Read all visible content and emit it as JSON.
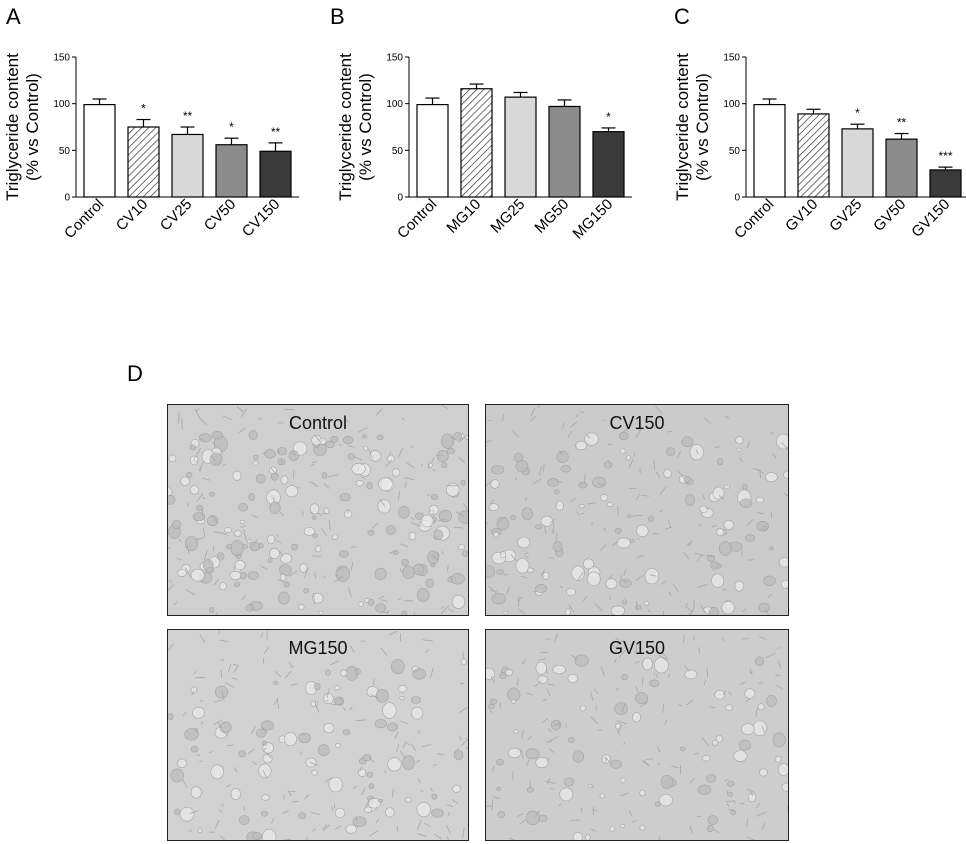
{
  "panels": {
    "a": "A",
    "b": "B",
    "c": "C",
    "d": "D"
  },
  "chart_data": [
    {
      "type": "bar",
      "panel": "A",
      "ylabel": "Triglyceride content\n(% vs Control)",
      "ylim": [
        0,
        150
      ],
      "yticks": [
        0,
        50,
        100,
        150
      ],
      "categories": [
        "Control",
        "CV10",
        "CV25",
        "CV50",
        "CV150"
      ],
      "values": [
        99,
        75,
        67,
        56,
        49
      ],
      "errors": [
        6,
        8,
        8,
        7,
        9
      ],
      "significance": [
        "",
        "*",
        "**",
        "*",
        "**"
      ],
      "fills": [
        "white",
        "hatch",
        "#d9d9d9",
        "#8c8c8c",
        "#3a3a3a"
      ]
    },
    {
      "type": "bar",
      "panel": "B",
      "ylabel": "Triglyceride content\n(% vs Control)",
      "ylim": [
        0,
        150
      ],
      "yticks": [
        0,
        50,
        100,
        150
      ],
      "categories": [
        "Control",
        "MG10",
        "MG25",
        "MG50",
        "MG150"
      ],
      "values": [
        99,
        116,
        107,
        97,
        70
      ],
      "errors": [
        7,
        5,
        5,
        7,
        4
      ],
      "significance": [
        "",
        "",
        "",
        "",
        "*"
      ],
      "fills": [
        "white",
        "hatch",
        "#d9d9d9",
        "#8c8c8c",
        "#3a3a3a"
      ]
    },
    {
      "type": "bar",
      "panel": "C",
      "ylabel": "Triglyceride content\n(% vs Control)",
      "ylim": [
        0,
        150
      ],
      "yticks": [
        0,
        50,
        100,
        150
      ],
      "categories": [
        "Control",
        "GV10",
        "GV25",
        "GV50",
        "GV150"
      ],
      "values": [
        99,
        89,
        73,
        62,
        29
      ],
      "errors": [
        6,
        5,
        5,
        6,
        3
      ],
      "significance": [
        "",
        "",
        "*",
        "**",
        "***"
      ],
      "fills": [
        "white",
        "hatch",
        "#d9d9d9",
        "#8c8c8c",
        "#3a3a3a"
      ]
    }
  ],
  "micrographs": [
    {
      "label": "Control"
    },
    {
      "label": "CV150"
    },
    {
      "label": "MG150"
    },
    {
      "label": "GV150"
    }
  ]
}
